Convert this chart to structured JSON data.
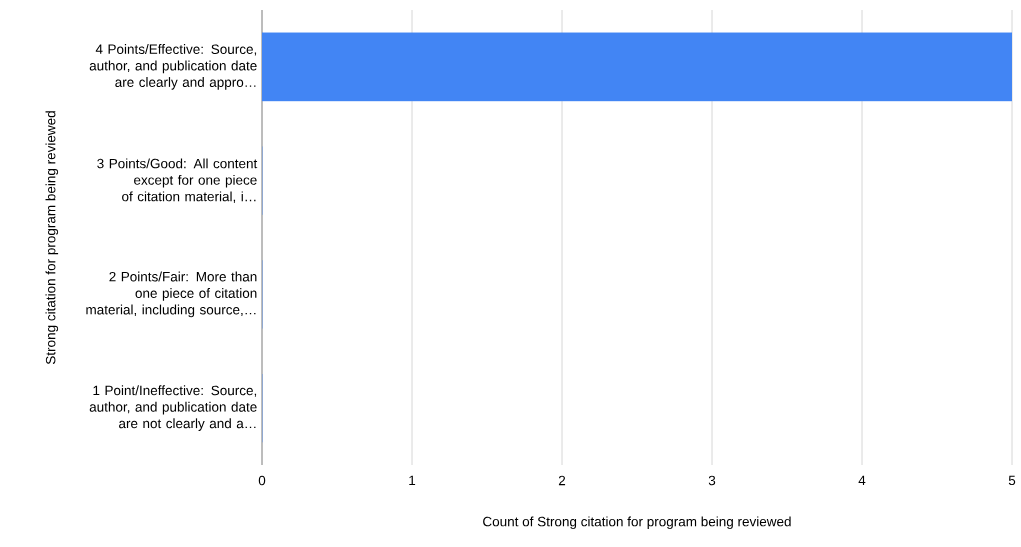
{
  "chart_data": {
    "type": "bar",
    "orientation": "horizontal",
    "xlabel": "Count of Strong citation for program being reviewed",
    "ylabel": "Strong citation for program being reviewed",
    "categories": [
      "4 Points/Effective: Source, author, and publication date are clearly and appro…",
      "3 Points/Good:  All content except for one piece of citation material, i…",
      "2 Points/Fair:  More than one piece of citation material, including source,…",
      "1 Point/Ineffective: Source, author, and publication date are not clearly and a…"
    ],
    "values": [
      5,
      0,
      0,
      0
    ],
    "color": "#4285f4",
    "xlim": [
      0,
      5
    ],
    "xticks": [
      0,
      1,
      2,
      3,
      4,
      5
    ],
    "grid": "x"
  }
}
